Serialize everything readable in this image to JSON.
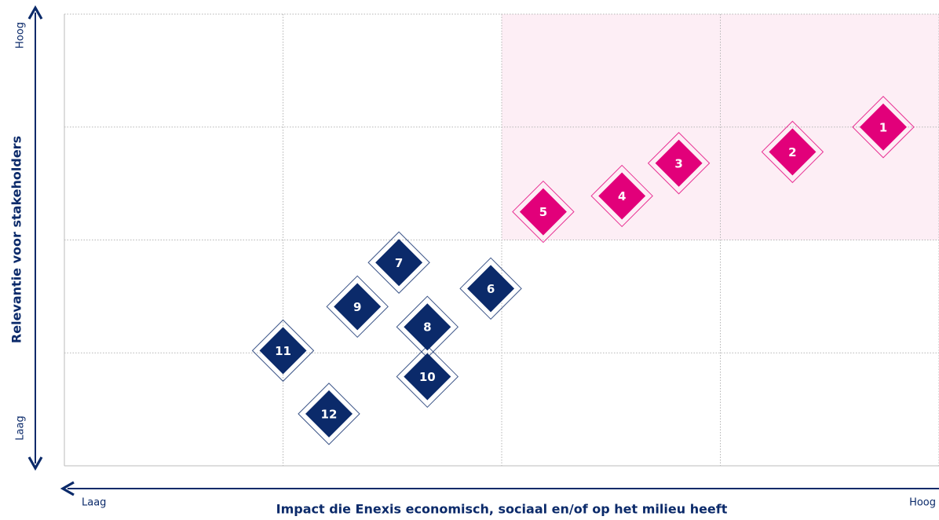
{
  "chart_data": {
    "type": "scatter",
    "x_label": "Impact die Enexis economisch, sociaal en/of op het milieu heeft",
    "y_label": "Relevantie voor stakeholders",
    "x_low": "Laag",
    "x_high": "Hoog",
    "y_low": "Laag",
    "y_high": "Hoog",
    "labels": [
      "1",
      "2",
      "3",
      "4",
      "5",
      "6",
      "7",
      "8",
      "9",
      "10",
      "11",
      "12"
    ],
    "x": [
      3.745,
      3.33,
      2.81,
      2.55,
      2.19,
      1.95,
      1.53,
      1.66,
      1.34,
      1.66,
      1.0,
      1.21
    ],
    "values": [
      3.0,
      2.78,
      2.68,
      2.39,
      2.25,
      1.57,
      1.8,
      1.23,
      1.41,
      0.79,
      1.02,
      0.46
    ],
    "colors": [
      "#e2007a",
      "#e2007a",
      "#e2007a",
      "#e2007a",
      "#e2007a",
      "#0b2a6a",
      "#0b2a6a",
      "#0b2a6a",
      "#0b2a6a",
      "#0b2a6a",
      "#0b2a6a",
      "#0b2a6a"
    ],
    "highlight": {
      "xlim": [
        2,
        4
      ],
      "ylim": [
        2,
        4
      ],
      "color": "#fdeef5"
    },
    "xlim": [
      0,
      4
    ],
    "ylim": [
      0,
      4
    ],
    "xticks": [
      0,
      1,
      2,
      3,
      4
    ],
    "yticks": [
      0,
      1,
      2,
      3,
      4
    ],
    "grid": true
  }
}
